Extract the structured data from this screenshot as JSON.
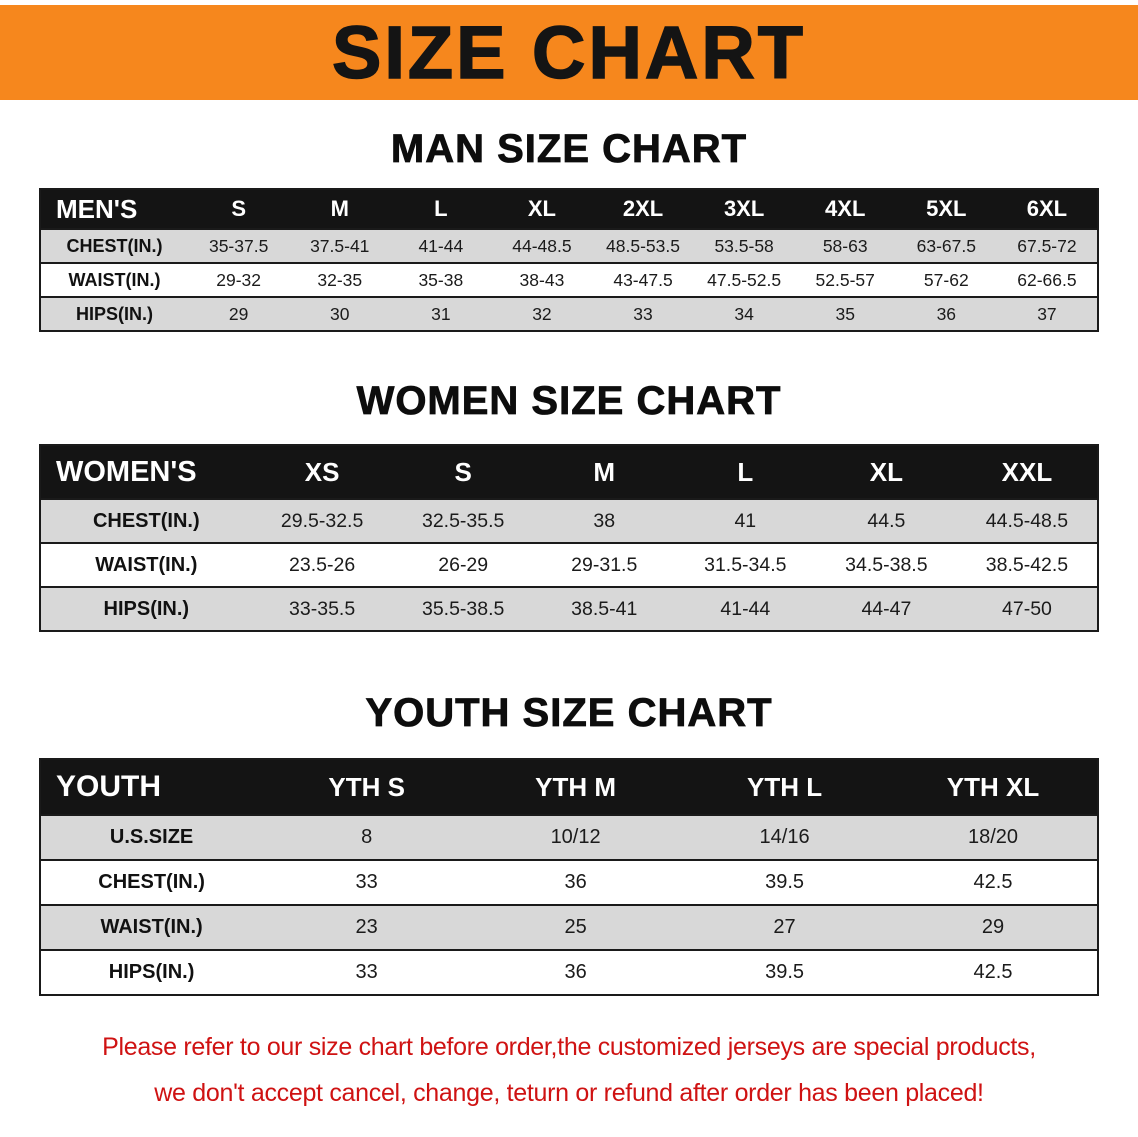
{
  "banner": {
    "title": "SIZE CHART"
  },
  "colors": {
    "page_bg": "#ffffff",
    "banner_bg": "#f6871d",
    "banner_text": "#141414",
    "table_header_bg": "#141414",
    "table_header_text": "#ffffff",
    "row_stripe": "#d8d8d8",
    "row_plain": "#ffffff",
    "border": "#1a1a1a",
    "disclaimer_text": "#cf1212"
  },
  "sections": [
    {
      "heading": "MAN SIZE CHART",
      "table": {
        "header": [
          "MEN'S",
          "S",
          "M",
          "L",
          "XL",
          "2XL",
          "3XL",
          "4XL",
          "5XL",
          "6XL"
        ],
        "rows": [
          {
            "label": "CHEST(IN.)",
            "values": [
              "35-37.5",
              "37.5-41",
              "41-44",
              "44-48.5",
              "48.5-53.5",
              "53.5-58",
              "58-63",
              "63-67.5",
              "67.5-72"
            ]
          },
          {
            "label": "WAIST(IN.)",
            "values": [
              "29-32",
              "32-35",
              "35-38",
              "38-43",
              "43-47.5",
              "47.5-52.5",
              "52.5-57",
              "57-62",
              "62-66.5"
            ]
          },
          {
            "label": "HIPS(IN.)",
            "values": [
              "29",
              "30",
              "31",
              "32",
              "33",
              "34",
              "35",
              "36",
              "37"
            ]
          }
        ]
      }
    },
    {
      "heading": "WOMEN SIZE CHART",
      "table": {
        "header": [
          "WOMEN'S",
          "XS",
          "S",
          "M",
          "L",
          "XL",
          "XXL"
        ],
        "rows": [
          {
            "label": "CHEST(IN.)",
            "values": [
              "29.5-32.5",
              "32.5-35.5",
              "38",
              "41",
              "44.5",
              "44.5-48.5"
            ]
          },
          {
            "label": "WAIST(IN.)",
            "values": [
              "23.5-26",
              "26-29",
              "29-31.5",
              "31.5-34.5",
              "34.5-38.5",
              "38.5-42.5"
            ]
          },
          {
            "label": "HIPS(IN.)",
            "values": [
              "33-35.5",
              "35.5-38.5",
              "38.5-41",
              "41-44",
              "44-47",
              "47-50"
            ]
          }
        ]
      }
    },
    {
      "heading": "YOUTH SIZE CHART",
      "table": {
        "header": [
          "YOUTH",
          "YTH S",
          "YTH M",
          "YTH L",
          "YTH XL"
        ],
        "rows": [
          {
            "label": "U.S.SIZE",
            "values": [
              "8",
              "10/12",
              "14/16",
              "18/20"
            ]
          },
          {
            "label": "CHEST(IN.)",
            "values": [
              "33",
              "36",
              "39.5",
              "42.5"
            ]
          },
          {
            "label": "WAIST(IN.)",
            "values": [
              "23",
              "25",
              "27",
              "29"
            ]
          },
          {
            "label": "HIPS(IN.)",
            "values": [
              "33",
              "36",
              "39.5",
              "42.5"
            ]
          }
        ]
      }
    }
  ],
  "disclaimer": {
    "line1": "Please refer to our size chart before order,the customized jerseys are special products,",
    "line2": "we don't accept cancel, change, teturn or refund after order has been placed!"
  }
}
